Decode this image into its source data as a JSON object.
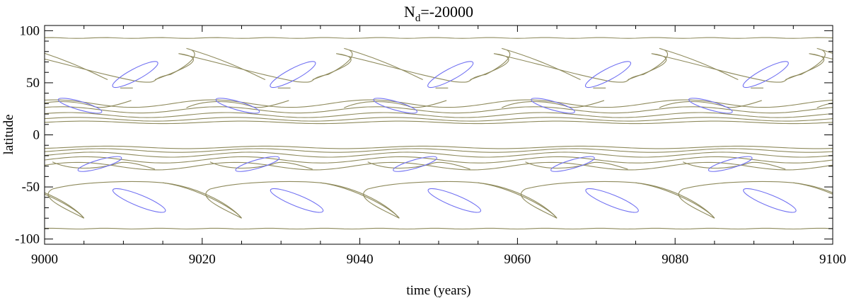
{
  "chart_data": {
    "type": "contour",
    "title": {
      "main": "N",
      "subscript": "d",
      "value": "=-20000"
    },
    "xlabel": "time (years)",
    "ylabel": "latitude",
    "xlim": [
      9000,
      9100
    ],
    "ylim": [
      -105,
      105
    ],
    "x_ticks": [
      9000,
      9020,
      9040,
      9060,
      9080,
      9100
    ],
    "x_tick_labels": [
      "9000",
      "9020",
      "9040",
      "9060",
      "9080",
      "9100"
    ],
    "y_ticks": [
      100,
      50,
      0,
      -50,
      -100
    ],
    "y_tick_labels": [
      "100",
      "50",
      "0",
      "-50",
      "-100"
    ],
    "cycle_period_years": 20,
    "grid": false,
    "colors": {
      "contour_levels": "#8e8a5c",
      "inner_contour": "#6f6ff2",
      "axes": "#000000"
    },
    "series": [
      {
        "name": "",
        "kind": "polar-line",
        "latitudes": [
          93,
          -90
        ]
      },
      {
        "name": "",
        "kind": "high-latitude-wing",
        "hemisphere": "north",
        "lat_range": [
          50,
          80
        ],
        "phase_years": 0
      },
      {
        "name": "",
        "kind": "high-latitude-wing",
        "hemisphere": "south",
        "lat_range": [
          -82,
          -45
        ],
        "phase_years": 0
      },
      {
        "name": "",
        "kind": "low-latitude-bands",
        "hemisphere": "north",
        "lat_range": [
          12,
          33
        ]
      },
      {
        "name": "",
        "kind": "low-latitude-bands",
        "hemisphere": "south",
        "lat_range": [
          -33,
          -12
        ]
      },
      {
        "name": "",
        "kind": "inner-ellipse",
        "hemisphere": "north",
        "center_lat": 58,
        "x_offset_years": 11.5
      },
      {
        "name": "",
        "kind": "inner-ellipse",
        "hemisphere": "north",
        "center_lat": 28,
        "x_offset_years": 4.5
      },
      {
        "name": "",
        "kind": "inner-ellipse",
        "hemisphere": "south",
        "center_lat": -63,
        "x_offset_years": 12
      },
      {
        "name": "",
        "kind": "inner-ellipse",
        "hemisphere": "south",
        "center_lat": -28,
        "x_offset_years": 7
      }
    ]
  }
}
